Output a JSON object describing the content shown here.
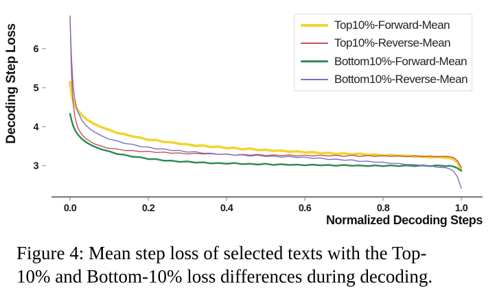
{
  "figure_caption": {
    "line1": "Figure 4: Mean step loss of selected texts with the Top-",
    "line2": "10% and Bottom-10% loss differences during decoding."
  },
  "chart_data": {
    "type": "line",
    "title": "",
    "xlabel": "Normalized Decoding Steps",
    "ylabel": "Decoding Step Loss",
    "xlim": [
      -0.0474,
      1.0544
    ],
    "ylim": [
      2.2,
      7.0
    ],
    "xticks": [
      0.0,
      0.2,
      0.4,
      0.6,
      0.8,
      1.0
    ],
    "xtick_labels": [
      "0.0",
      "0.2",
      "0.4",
      "0.6",
      "0.8",
      "1.0"
    ],
    "yticks": [
      3,
      4,
      5,
      6
    ],
    "ytick_labels": [
      "3",
      "4",
      "5",
      "6"
    ],
    "grid": false,
    "legend_position": "upper right",
    "axis_color": "#3a3a3a",
    "tick_mark_color": "#888888",
    "x": [
      0,
      0.004,
      0.008,
      0.012,
      0.016,
      0.02,
      0.03,
      0.04,
      0.05,
      0.06,
      0.08,
      0.1,
      0.12,
      0.14,
      0.16,
      0.18,
      0.2,
      0.22,
      0.24,
      0.26,
      0.28,
      0.3,
      0.32,
      0.34,
      0.36,
      0.38,
      0.4,
      0.42,
      0.44,
      0.46,
      0.48,
      0.5,
      0.52,
      0.54,
      0.56,
      0.58,
      0.6,
      0.62,
      0.64,
      0.66,
      0.68,
      0.7,
      0.72,
      0.74,
      0.76,
      0.78,
      0.8,
      0.82,
      0.84,
      0.86,
      0.88,
      0.9,
      0.92,
      0.94,
      0.96,
      0.97,
      0.98,
      0.99,
      1.0
    ],
    "series": [
      {
        "name": "Top10%-Forward-Mean",
        "color": "#F2D430",
        "line_width": 3.6,
        "values": [
          5.15,
          4.82,
          4.66,
          4.56,
          4.48,
          4.42,
          4.3,
          4.21,
          4.14,
          4.08,
          3.99,
          3.92,
          3.84,
          3.81,
          3.75,
          3.72,
          3.66,
          3.66,
          3.61,
          3.6,
          3.56,
          3.55,
          3.51,
          3.52,
          3.48,
          3.49,
          3.45,
          3.46,
          3.42,
          3.44,
          3.4,
          3.41,
          3.38,
          3.39,
          3.36,
          3.37,
          3.34,
          3.35,
          3.32,
          3.33,
          3.3,
          3.32,
          3.29,
          3.31,
          3.28,
          3.29,
          3.26,
          3.28,
          3.25,
          3.26,
          3.23,
          3.24,
          3.21,
          3.23,
          3.2,
          3.2,
          3.17,
          3.08,
          2.9
        ]
      },
      {
        "name": "Top10%-Reverse-Mean",
        "color": "#C0534F",
        "line_width": 1.4,
        "values": [
          6.84,
          5.3,
          4.6,
          4.28,
          4.1,
          3.97,
          3.8,
          3.7,
          3.63,
          3.57,
          3.5,
          3.44,
          3.43,
          3.39,
          3.39,
          3.36,
          3.37,
          3.34,
          3.35,
          3.32,
          3.33,
          3.3,
          3.32,
          3.3,
          3.31,
          3.29,
          3.3,
          3.27,
          3.29,
          3.27,
          3.29,
          3.26,
          3.28,
          3.26,
          3.28,
          3.25,
          3.27,
          3.25,
          3.27,
          3.25,
          3.27,
          3.24,
          3.27,
          3.24,
          3.26,
          3.24,
          3.26,
          3.24,
          3.26,
          3.23,
          3.26,
          3.23,
          3.25,
          3.23,
          3.24,
          3.23,
          3.21,
          3.13,
          2.96
        ]
      },
      {
        "name": "Bottom10%-Forward-Mean",
        "color": "#2F8B57",
        "line_width": 2.5,
        "values": [
          4.33,
          4.16,
          4.02,
          3.93,
          3.86,
          3.8,
          3.69,
          3.61,
          3.55,
          3.5,
          3.42,
          3.37,
          3.3,
          3.28,
          3.23,
          3.22,
          3.17,
          3.17,
          3.13,
          3.13,
          3.1,
          3.11,
          3.08,
          3.09,
          3.06,
          3.07,
          3.05,
          3.07,
          3.04,
          3.05,
          3.03,
          3.05,
          3.02,
          3.04,
          3.02,
          3.03,
          3.01,
          3.03,
          3.01,
          3.02,
          3.0,
          3.02,
          3.0,
          3.01,
          2.99,
          3.01,
          2.99,
          3.01,
          2.99,
          3.01,
          2.99,
          3.01,
          2.99,
          3.01,
          2.99,
          3.0,
          2.98,
          2.94,
          2.87
        ]
      },
      {
        "name": "Bottom10%-Reverse-Mean",
        "color": "#7A6BC5",
        "line_width": 1.4,
        "values": [
          6.72,
          5.7,
          5.05,
          4.72,
          4.52,
          4.38,
          4.17,
          4.04,
          3.95,
          3.88,
          3.77,
          3.68,
          3.64,
          3.57,
          3.55,
          3.49,
          3.48,
          3.43,
          3.43,
          3.39,
          3.39,
          3.35,
          3.36,
          3.32,
          3.32,
          3.29,
          3.3,
          3.27,
          3.28,
          3.25,
          3.27,
          3.24,
          3.25,
          3.22,
          3.24,
          3.21,
          3.22,
          3.19,
          3.2,
          3.16,
          3.17,
          3.14,
          3.15,
          3.11,
          3.12,
          3.09,
          3.09,
          3.06,
          3.06,
          3.03,
          3.03,
          3.0,
          3.0,
          2.96,
          2.95,
          2.92,
          2.86,
          2.72,
          2.42
        ]
      }
    ]
  }
}
